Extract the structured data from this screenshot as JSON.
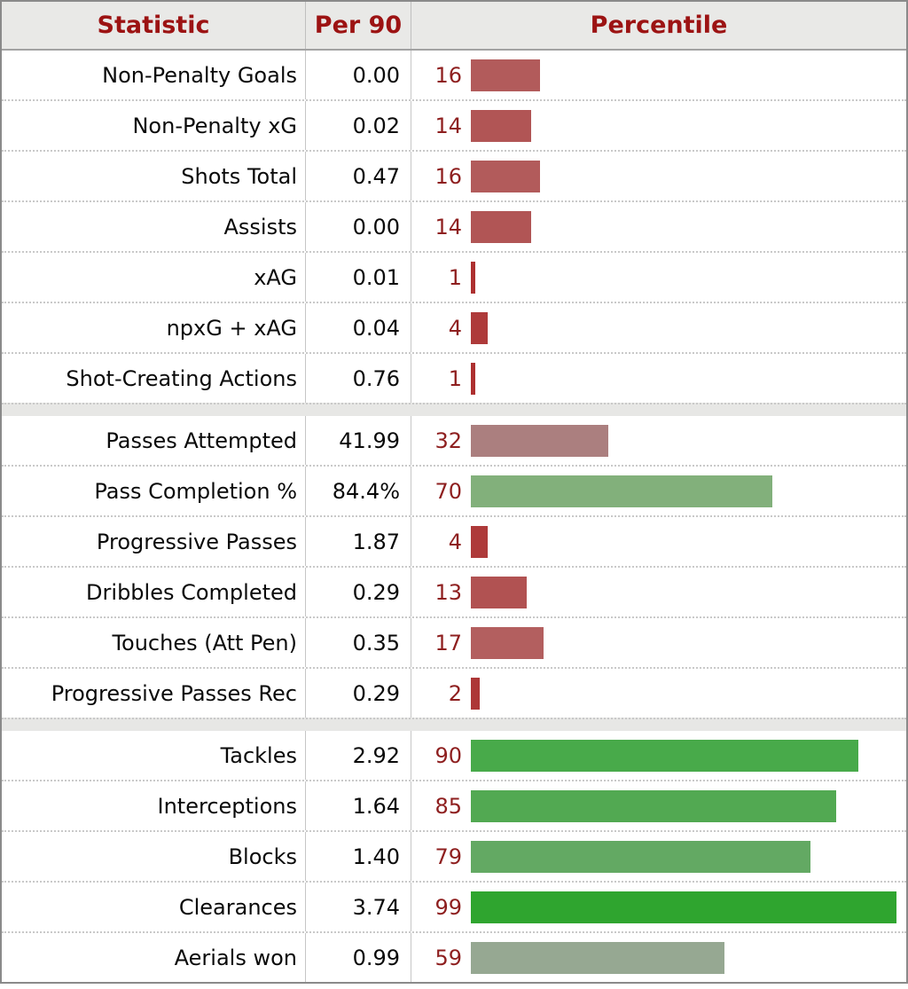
{
  "table": {
    "headers": {
      "statistic": "Statistic",
      "per90": "Per 90",
      "percentile": "Percentile"
    },
    "colors": {
      "header_text": "#9c1313",
      "header_background": "#e9e9e7",
      "percentile_number": "#8e1f1f",
      "outer_border": "#8a8a8a",
      "separator_background": "#e7e7e5"
    },
    "groups": [
      {
        "rows": [
          {
            "statistic": "Non-Penalty Goals",
            "per90": "0.00",
            "percentile": 16,
            "bar_color": "#b25b5b"
          },
          {
            "statistic": "Non-Penalty xG",
            "per90": "0.02",
            "percentile": 14,
            "bar_color": "#b15555"
          },
          {
            "statistic": "Shots Total",
            "per90": "0.47",
            "percentile": 16,
            "bar_color": "#b25b5b"
          },
          {
            "statistic": "Assists",
            "per90": "0.00",
            "percentile": 14,
            "bar_color": "#b15555"
          },
          {
            "statistic": "xAG",
            "per90": "0.01",
            "percentile": 1,
            "bar_color": "#ad3030"
          },
          {
            "statistic": "npxG + xAG",
            "per90": "0.04",
            "percentile": 4,
            "bar_color": "#ae3a3a"
          },
          {
            "statistic": "Shot-Creating Actions",
            "per90": "0.76",
            "percentile": 1,
            "bar_color": "#ad3030"
          }
        ]
      },
      {
        "rows": [
          {
            "statistic": "Passes Attempted",
            "per90": "41.99",
            "percentile": 32,
            "bar_color": "#ab7f7f"
          },
          {
            "statistic": "Pass Completion %",
            "per90": "84.4%",
            "percentile": 70,
            "bar_color": "#82b07b"
          },
          {
            "statistic": "Progressive Passes",
            "per90": "1.87",
            "percentile": 4,
            "bar_color": "#ae3a3a"
          },
          {
            "statistic": "Dribbles Completed",
            "per90": "0.29",
            "percentile": 13,
            "bar_color": "#b15252"
          },
          {
            "statistic": "Touches (Att Pen)",
            "per90": "0.35",
            "percentile": 17,
            "bar_color": "#b35f5f"
          },
          {
            "statistic": "Progressive Passes Rec",
            "per90": "0.29",
            "percentile": 2,
            "bar_color": "#ad3737"
          }
        ]
      },
      {
        "rows": [
          {
            "statistic": "Tackles",
            "per90": "2.92",
            "percentile": 90,
            "bar_color": "#48aa4a"
          },
          {
            "statistic": "Interceptions",
            "per90": "1.64",
            "percentile": 85,
            "bar_color": "#52a952"
          },
          {
            "statistic": "Blocks",
            "per90": "1.40",
            "percentile": 79,
            "bar_color": "#63a963"
          },
          {
            "statistic": "Clearances",
            "per90": "3.74",
            "percentile": 99,
            "bar_color": "#2fa52f"
          },
          {
            "statistic": "Aerials won",
            "per90": "0.99",
            "percentile": 59,
            "bar_color": "#96a892"
          }
        ]
      }
    ]
  },
  "chart_data": {
    "type": "bar",
    "orientation": "horizontal",
    "title": "",
    "xlabel": "Percentile",
    "ylabel": "Statistic",
    "xlim": [
      0,
      100
    ],
    "grid": false,
    "legend_position": "none",
    "column_headers": [
      "Statistic",
      "Per 90",
      "Percentile"
    ],
    "categories": [
      "Non-Penalty Goals",
      "Non-Penalty xG",
      "Shots Total",
      "Assists",
      "xAG",
      "npxG + xAG",
      "Shot-Creating Actions",
      "Passes Attempted",
      "Pass Completion %",
      "Progressive Passes",
      "Dribbles Completed",
      "Touches (Att Pen)",
      "Progressive Passes Rec",
      "Tackles",
      "Interceptions",
      "Blocks",
      "Clearances",
      "Aerials won"
    ],
    "series": [
      {
        "name": "Per 90",
        "values": [
          "0.00",
          "0.02",
          "0.47",
          "0.00",
          "0.01",
          "0.04",
          "0.76",
          "41.99",
          "84.4%",
          "1.87",
          "0.29",
          "0.35",
          "0.29",
          "2.92",
          "1.64",
          "1.40",
          "3.74",
          "0.99"
        ]
      },
      {
        "name": "Percentile",
        "values": [
          16,
          14,
          16,
          14,
          1,
          4,
          1,
          32,
          70,
          4,
          13,
          17,
          2,
          90,
          85,
          79,
          99,
          59
        ]
      }
    ],
    "group_breaks_after": [
      "Shot-Creating Actions",
      "Progressive Passes Rec"
    ]
  }
}
